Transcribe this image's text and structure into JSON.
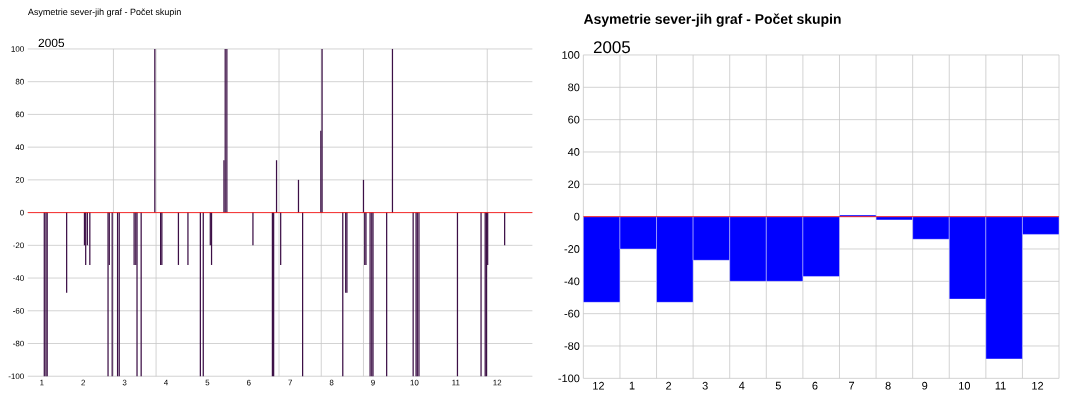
{
  "chart_data": [
    {
      "type": "bar",
      "title": "Asymetrie  sever-jih  graf  -  Počet skupin",
      "annotations": [
        "2005"
      ],
      "color": "#3c0f46",
      "x": [
        1.06,
        1.1,
        1.13,
        1.6,
        2.03,
        2.06,
        2.1,
        2.16,
        2.6,
        2.63,
        2.7,
        2.83,
        2.87,
        3.23,
        3.27,
        3.3,
        3.4,
        3.73,
        3.87,
        3.9,
        4.3,
        4.53,
        4.83,
        4.9,
        5.07,
        5.1,
        5.4,
        5.43,
        5.47,
        6.1,
        6.57,
        6.6,
        6.67,
        6.77,
        7.2,
        7.3,
        7.74,
        7.77,
        8.27,
        8.34,
        8.37,
        8.77,
        8.8,
        8.83,
        8.93,
        8.97,
        9.0,
        9.33,
        9.47,
        9.97,
        10.04,
        10.07,
        10.11,
        11.04,
        11.61,
        11.71,
        11.74,
        11.77,
        12.18
      ],
      "values": [
        -100,
        -100,
        -100,
        -49,
        -20,
        -32,
        -20,
        -32,
        -100,
        -32,
        -100,
        -100,
        -100,
        -32,
        -32,
        -100,
        -100,
        100,
        -32,
        -32,
        -32,
        -32,
        -100,
        -100,
        -20,
        -32,
        32,
        100,
        100,
        -20,
        -100,
        -100,
        32,
        -32,
        20,
        -100,
        50,
        100,
        -100,
        -49,
        -49,
        20,
        -32,
        -32,
        -100,
        -100,
        -100,
        -100,
        100,
        -100,
        -100,
        -100,
        -100,
        -100,
        -100,
        -100,
        -100,
        -32,
        -20
      ],
      "xlim": [
        0.66,
        12.85
      ],
      "xticks": [
        1,
        2,
        3,
        4,
        5,
        6,
        7,
        8,
        9,
        10,
        11,
        12,
        {
          "value": 2.73,
          "label": null
        },
        {
          "value": 3.76,
          "label": null
        },
        {
          "value": 6.73,
          "label": null
        },
        {
          "value": 7.75,
          "label": null
        },
        {
          "value": 8.77,
          "label": null
        },
        {
          "value": 11.76,
          "label": null
        }
      ],
      "ylim": [
        -100,
        100
      ],
      "yticks": [
        -100,
        -80,
        -60,
        -40,
        -20,
        0,
        20,
        40,
        60,
        80,
        100
      ],
      "grid": true,
      "ref_lines": [
        {
          "axis": "y",
          "value": 0,
          "color": "#ff0000"
        }
      ]
    },
    {
      "type": "bar",
      "title": "Asymetrie  sever-jih  graf  -  Počet skupin",
      "annotations": [
        "2005"
      ],
      "color": "#0000ff",
      "categories": [
        "12",
        "1",
        "2",
        "3",
        "4",
        "5",
        "6",
        "7",
        "8",
        "9",
        "10",
        "11",
        "12"
      ],
      "values": [
        -53,
        -20,
        -53,
        -27,
        -40,
        -40,
        -37,
        1,
        -2,
        -14,
        -51,
        -88,
        -11
      ],
      "ylim": [
        -100,
        100
      ],
      "yticks": [
        -100,
        -80,
        -60,
        -40,
        -20,
        0,
        20,
        40,
        60,
        80,
        100
      ],
      "grid": true,
      "ref_lines": [
        {
          "axis": "y",
          "value": 0,
          "color": "#ff0000"
        }
      ]
    }
  ]
}
